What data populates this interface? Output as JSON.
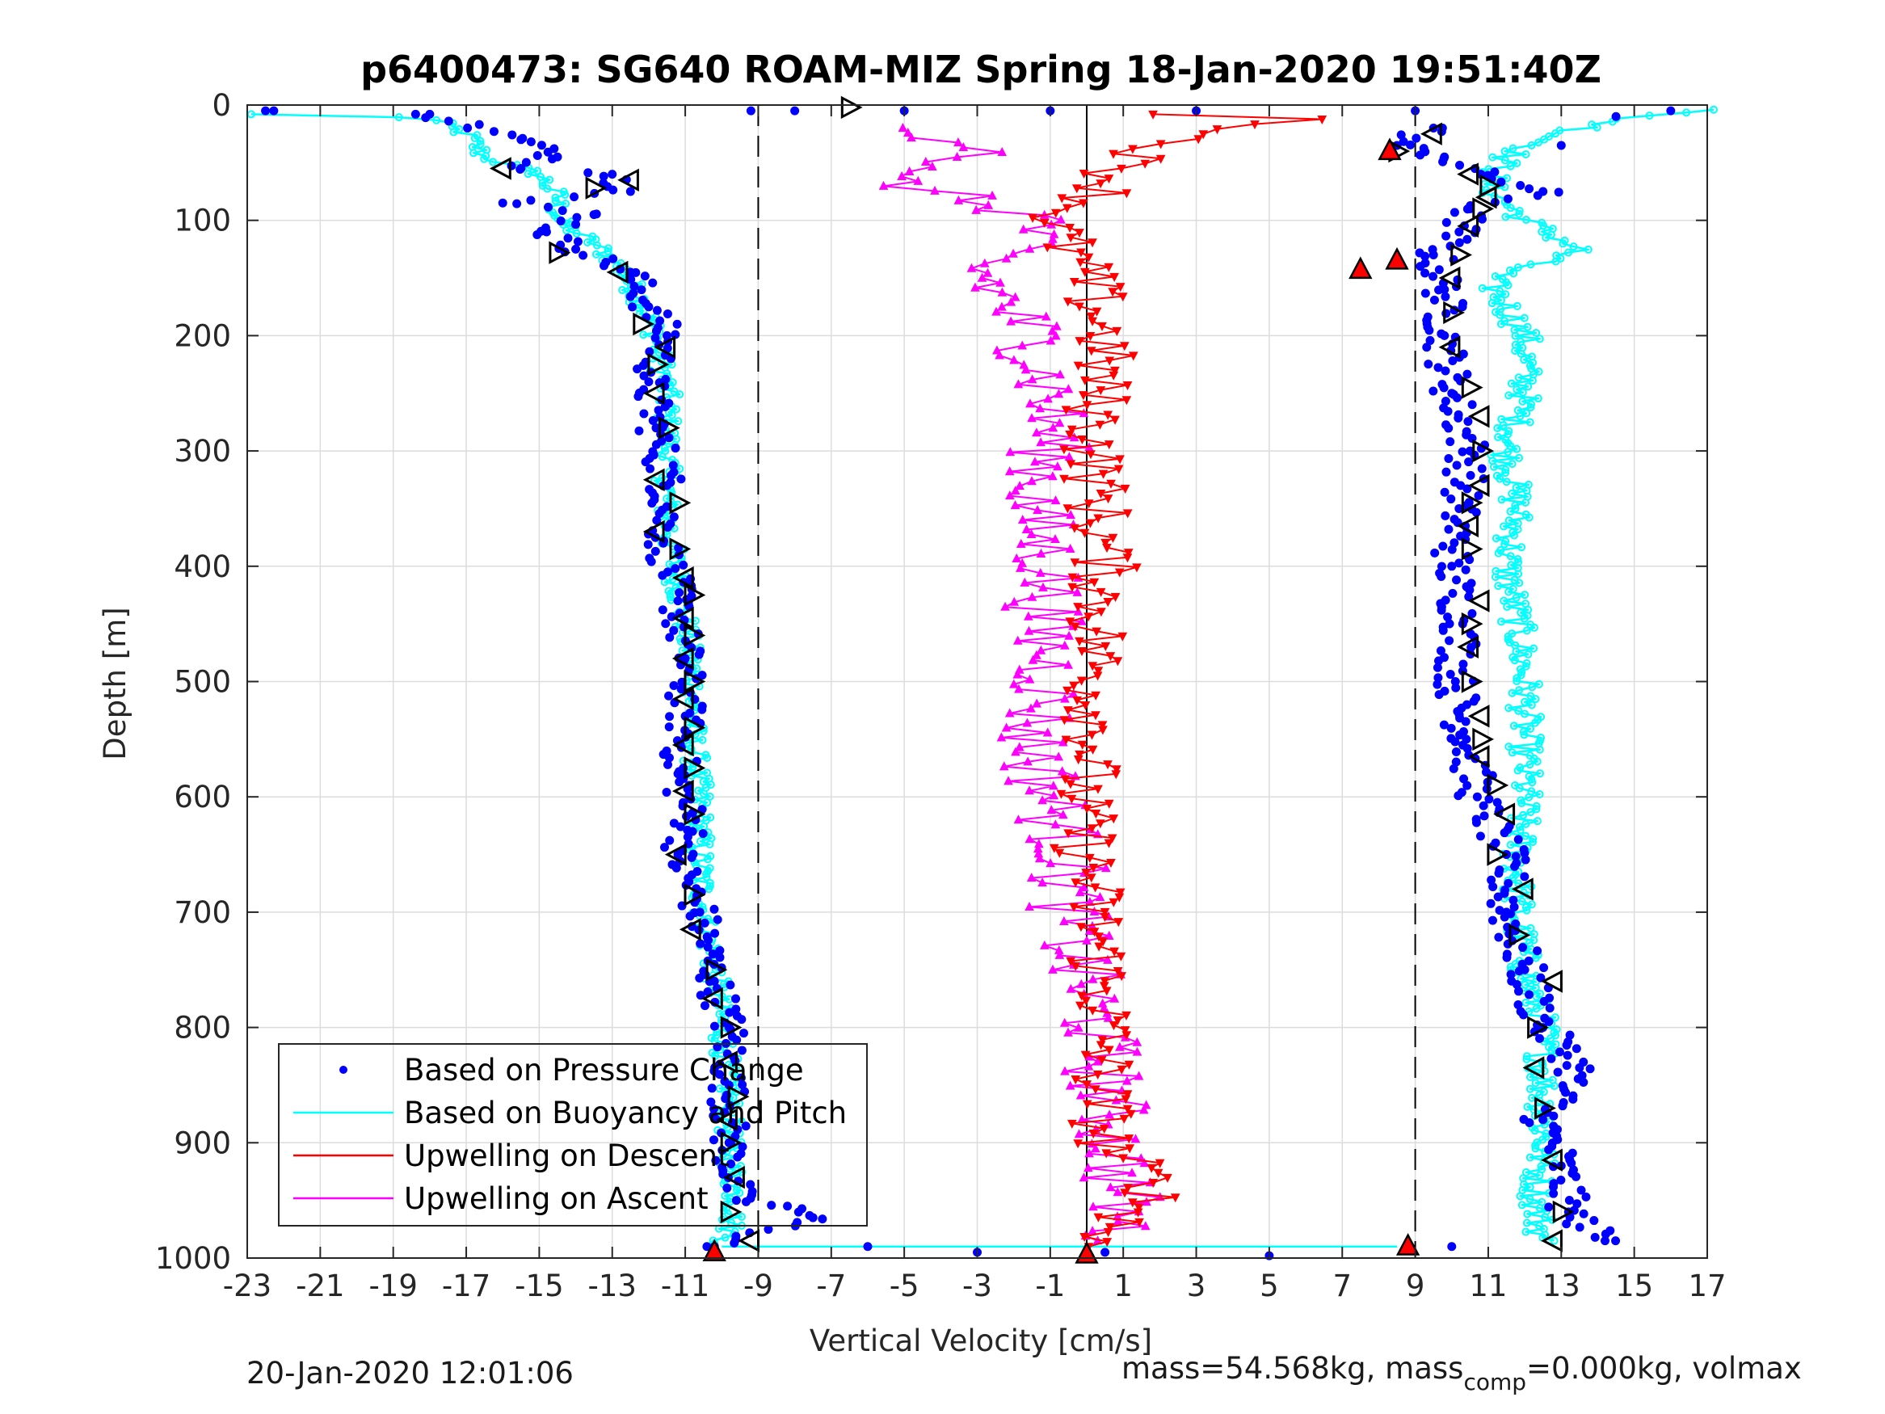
{
  "chart_data": {
    "type": "scatter",
    "title": "p6400473: SG640 ROAM-MIZ Spring 18-Jan-2020 19:51:40Z",
    "xlabel": "Vertical Velocity [cm/s]",
    "ylabel": "Depth [m]",
    "xlim": [
      -23,
      17
    ],
    "ylim": [
      0,
      1000
    ],
    "y_reversed": true,
    "grid": true,
    "x_ticks": [
      "-23",
      "-21",
      "-19",
      "-17",
      "-15",
      "-13",
      "-11",
      "-9",
      "-7",
      "-5",
      "-3",
      "-1",
      "1",
      "3",
      "5",
      "7",
      "9",
      "11",
      "13",
      "15",
      "17"
    ],
    "y_ticks": [
      "0",
      "100",
      "200",
      "300",
      "400",
      "500",
      "600",
      "700",
      "800",
      "900",
      "1000"
    ],
    "reference_lines": [
      {
        "x": -9,
        "style": "dashed"
      },
      {
        "x": 0,
        "style": "solid"
      },
      {
        "x": 9,
        "style": "dashed"
      }
    ],
    "legend_position": "bottom-left",
    "legend": [
      "Based on Pressure Change",
      "Based on Buoyancy and Pitch",
      "Upwelling on Descent",
      "Upwelling on Ascent"
    ],
    "series": [
      {
        "name": "Based on Pressure Change",
        "color": "#0000ff",
        "marker": "dot",
        "descent": [
          [
            -22.5,
            5
          ],
          [
            -18,
            8
          ],
          [
            -15.5,
            30
          ],
          [
            -14.5,
            45
          ],
          [
            -15.5,
            55
          ],
          [
            -13,
            60
          ],
          [
            -12.5,
            75
          ],
          [
            -16,
            85
          ],
          [
            -13.5,
            95
          ],
          [
            -14.8,
            110
          ],
          [
            -14,
            125
          ],
          [
            -12.5,
            145
          ],
          [
            -12,
            175
          ],
          [
            -11.5,
            200
          ],
          [
            -12,
            240
          ],
          [
            -11.8,
            280
          ],
          [
            -11.5,
            330
          ],
          [
            -11.6,
            380
          ],
          [
            -11.2,
            430
          ],
          [
            -11,
            480
          ],
          [
            -11,
            530
          ],
          [
            -11.2,
            580
          ],
          [
            -10.8,
            630
          ],
          [
            -11.2,
            650
          ],
          [
            -10.6,
            700
          ],
          [
            -10.2,
            760
          ],
          [
            -9.8,
            800
          ],
          [
            -9.8,
            850
          ],
          [
            -9.8,
            900
          ],
          [
            -9.6,
            950
          ],
          [
            -8.2,
            955
          ],
          [
            -7.5,
            965
          ],
          [
            -10.2,
            990
          ]
        ],
        "ascent": [
          [
            9.5,
            20
          ],
          [
            8.5,
            35
          ],
          [
            9.8,
            45
          ],
          [
            10.8,
            60
          ],
          [
            12.5,
            75
          ],
          [
            10.5,
            90
          ],
          [
            10.2,
            110
          ],
          [
            9.5,
            130
          ],
          [
            9.8,
            160
          ],
          [
            9.8,
            200
          ],
          [
            10,
            250
          ],
          [
            10.5,
            300
          ],
          [
            10.2,
            350
          ],
          [
            10,
            400
          ],
          [
            10.3,
            450
          ],
          [
            10.1,
            500
          ],
          [
            10.4,
            550
          ],
          [
            10.7,
            600
          ],
          [
            11.5,
            650
          ],
          [
            11.5,
            700
          ],
          [
            12,
            750
          ],
          [
            12.5,
            800
          ],
          [
            13.5,
            835
          ],
          [
            12.5,
            880
          ],
          [
            13,
            920
          ],
          [
            13.2,
            960
          ],
          [
            14.2,
            985
          ],
          [
            13,
            35
          ],
          [
            14.5,
            10
          ],
          [
            16,
            5
          ]
        ],
        "surface": [
          [
            -9.2,
            5
          ],
          [
            -8,
            5
          ],
          [
            -5,
            5
          ],
          [
            -1,
            5
          ],
          [
            3,
            5
          ],
          [
            9,
            5
          ],
          [
            -6,
            990
          ],
          [
            -3,
            995
          ],
          [
            0.5,
            995
          ],
          [
            5,
            998
          ],
          [
            10,
            990
          ]
        ]
      },
      {
        "name": "Based on Buoyancy and Pitch",
        "color": "#00ffff",
        "marker": "circle-line",
        "descent": [
          [
            -23,
            8
          ],
          [
            -20,
            8
          ],
          [
            -18,
            12
          ],
          [
            -17,
            25
          ],
          [
            -16.5,
            45
          ],
          [
            -15,
            60
          ],
          [
            -14.5,
            80
          ],
          [
            -14.5,
            100
          ],
          [
            -13.5,
            120
          ],
          [
            -12.8,
            140
          ],
          [
            -12.2,
            170
          ],
          [
            -11.8,
            200
          ],
          [
            -11.5,
            250
          ],
          [
            -11.5,
            300
          ],
          [
            -11.5,
            350
          ],
          [
            -11.3,
            400
          ],
          [
            -11,
            450
          ],
          [
            -10.8,
            500
          ],
          [
            -10.8,
            550
          ],
          [
            -10.6,
            600
          ],
          [
            -10.6,
            650
          ],
          [
            -10.5,
            700
          ],
          [
            -10.2,
            750
          ],
          [
            -10,
            800
          ],
          [
            -9.8,
            850
          ],
          [
            -9.8,
            900
          ],
          [
            -9.6,
            950
          ],
          [
            -9.8,
            980
          ],
          [
            -10,
            990
          ],
          [
            8.5,
            990
          ]
        ],
        "ascent": [
          [
            17,
            4
          ],
          [
            15,
            10
          ],
          [
            13,
            25
          ],
          [
            11.5,
            45
          ],
          [
            11,
            70
          ],
          [
            12,
            100
          ],
          [
            13.5,
            125
          ],
          [
            11,
            150
          ],
          [
            12,
            200
          ],
          [
            12,
            250
          ],
          [
            11.5,
            300
          ],
          [
            11.8,
            350
          ],
          [
            11.5,
            400
          ],
          [
            11.8,
            450
          ],
          [
            12,
            500
          ],
          [
            12,
            550
          ],
          [
            12,
            600
          ],
          [
            11.8,
            650
          ],
          [
            11.8,
            700
          ],
          [
            12,
            750
          ],
          [
            12.5,
            800
          ],
          [
            12.5,
            850
          ],
          [
            12.5,
            900
          ],
          [
            12.3,
            950
          ],
          [
            12.5,
            985
          ]
        ]
      },
      {
        "name": "Upwelling on Descent",
        "color": "#ff0000",
        "marker": "triangle-down",
        "points": [
          [
            1,
            8
          ],
          [
            4,
            12
          ],
          [
            8,
            8
          ],
          [
            3,
            25
          ],
          [
            1,
            50
          ],
          [
            0.5,
            75
          ],
          [
            -1,
            100
          ],
          [
            0,
            150
          ],
          [
            0.5,
            200
          ],
          [
            0.3,
            250
          ],
          [
            0.2,
            300
          ],
          [
            0.3,
            350
          ],
          [
            0.5,
            400
          ],
          [
            0.3,
            450
          ],
          [
            0.2,
            500
          ],
          [
            0.3,
            550
          ],
          [
            -0.2,
            600
          ],
          [
            0,
            650
          ],
          [
            0.2,
            700
          ],
          [
            0.4,
            750
          ],
          [
            0.5,
            800
          ],
          [
            0.4,
            850
          ],
          [
            0.5,
            900
          ],
          [
            2,
            940
          ],
          [
            1,
            970
          ],
          [
            0,
            990
          ]
        ]
      },
      {
        "name": "Upwelling on Ascent",
        "color": "#ff00ff",
        "marker": "triangle-up",
        "points": [
          [
            -5,
            20
          ],
          [
            -2,
            40
          ],
          [
            -6,
            60
          ],
          [
            -1,
            100
          ],
          [
            -3,
            140
          ],
          [
            -1.5,
            200
          ],
          [
            -1,
            250
          ],
          [
            -1,
            300
          ],
          [
            -1.5,
            350
          ],
          [
            -1,
            400
          ],
          [
            -1.2,
            450
          ],
          [
            -1,
            500
          ],
          [
            -1.5,
            550
          ],
          [
            -1,
            600
          ],
          [
            -0.5,
            650
          ],
          [
            -0.5,
            700
          ],
          [
            -0.2,
            750
          ],
          [
            0.3,
            800
          ],
          [
            0.5,
            850
          ],
          [
            0.8,
            900
          ],
          [
            1,
            950
          ],
          [
            0.8,
            985
          ]
        ]
      }
    ],
    "waypoint_markers": {
      "descent_left": [
        [
          -16,
          55
        ],
        [
          -13.5,
          72
        ],
        [
          -12.5,
          65
        ],
        [
          -14.5,
          128
        ],
        [
          -12.8,
          145
        ],
        [
          -12.2,
          190
        ],
        [
          -11.5,
          210
        ],
        [
          -11.8,
          225
        ],
        [
          -11.8,
          250
        ],
        [
          -11.5,
          280
        ],
        [
          -11.8,
          325
        ],
        [
          -11.2,
          345
        ],
        [
          -11.8,
          370
        ],
        [
          -11.2,
          385
        ],
        [
          -11,
          410
        ],
        [
          -10.8,
          425
        ],
        [
          -11,
          445
        ],
        [
          -10.8,
          460
        ],
        [
          -11,
          480
        ],
        [
          -10.8,
          500
        ],
        [
          -11,
          515
        ],
        [
          -10.8,
          540
        ],
        [
          -11,
          555
        ],
        [
          -10.8,
          575
        ],
        [
          -11,
          595
        ],
        [
          -10.8,
          615
        ],
        [
          -11.2,
          650
        ],
        [
          -10.8,
          685
        ],
        [
          -10.8,
          715
        ],
        [
          -10.2,
          750
        ],
        [
          -10.2,
          775
        ],
        [
          -9.8,
          800
        ],
        [
          -9.8,
          830
        ],
        [
          -9.6,
          860
        ],
        [
          -9.8,
          880
        ],
        [
          -9.8,
          900
        ],
        [
          -9.6,
          930
        ],
        [
          -9.8,
          960
        ],
        [
          -9.2,
          985
        ],
        [
          -6.5,
          2
        ]
      ],
      "ascent_right": [
        [
          9.5,
          25
        ],
        [
          8.5,
          40
        ],
        [
          10.5,
          60
        ],
        [
          11,
          70
        ],
        [
          11,
          80
        ],
        [
          10.8,
          90
        ],
        [
          10.5,
          105
        ],
        [
          10.2,
          130
        ],
        [
          10,
          150
        ],
        [
          10,
          180
        ],
        [
          10,
          210
        ],
        [
          10.5,
          245
        ],
        [
          10.8,
          270
        ],
        [
          10.8,
          300
        ],
        [
          10.8,
          330
        ],
        [
          10.5,
          345
        ],
        [
          10.5,
          365
        ],
        [
          10.5,
          385
        ],
        [
          10.8,
          430
        ],
        [
          10.5,
          450
        ],
        [
          10.5,
          470
        ],
        [
          10.5,
          500
        ],
        [
          10.8,
          530
        ],
        [
          10.8,
          550
        ],
        [
          10.8,
          565
        ],
        [
          11.2,
          590
        ],
        [
          11.5,
          615
        ],
        [
          11.2,
          650
        ],
        [
          12,
          680
        ],
        [
          11.8,
          720
        ],
        [
          12.8,
          760
        ],
        [
          12.3,
          800
        ],
        [
          12.3,
          835
        ],
        [
          12.5,
          870
        ],
        [
          12.8,
          915
        ],
        [
          13,
          960
        ],
        [
          12.8,
          985
        ]
      ],
      "red_filled": [
        [
          -10.2,
          995
        ],
        [
          0,
          997
        ],
        [
          8.3,
          40
        ],
        [
          8.5,
          135
        ],
        [
          7.5,
          143
        ],
        [
          8.8,
          990
        ]
      ]
    },
    "annotations": {
      "timestamp": "20-Jan-2020 12:01:06",
      "mass_text_prefix": "mass=54.568kg, mass",
      "mass_text_sub": "comp",
      "mass_text_suffix": "=0.000kg, volmax"
    }
  },
  "colors": {
    "pressure": "#0000ff",
    "buoyancy": "#00ffff",
    "upwelling_descent": "#ff0000",
    "upwelling_ascent": "#ff00ff",
    "axis": "#262626",
    "grid": "#dcdcdc"
  }
}
